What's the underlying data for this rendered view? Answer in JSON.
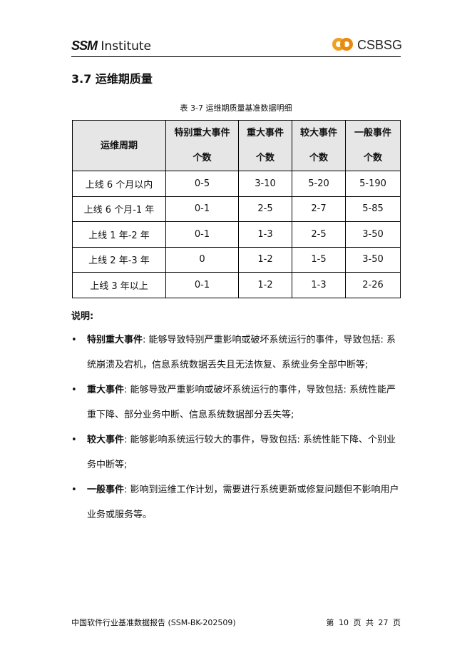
{
  "header": {
    "logo_left": "SSM Institute",
    "logo_left_mark": "SSM",
    "logo_left_text": "Institute",
    "logo_right": "CSBSG"
  },
  "section": {
    "heading": "3.7  运维期质量"
  },
  "table": {
    "caption": "表 3-7  运维期质量基准数据明细",
    "headers": [
      {
        "line1": "运维周期",
        "line2": ""
      },
      {
        "line1": "特别重大事件",
        "line2": "个数"
      },
      {
        "line1": "重大事件",
        "line2": "个数"
      },
      {
        "line1": "较大事件",
        "line2": "个数"
      },
      {
        "line1": "一般事件",
        "line2": "个数"
      }
    ],
    "rows": [
      [
        "上线 6 个月以内",
        "0-5",
        "3-10",
        "5-20",
        "5-190"
      ],
      [
        "上线 6 个月-1 年",
        "0-1",
        "2-5",
        "2-7",
        "5-85"
      ],
      [
        "上线 1 年-2 年",
        "0-1",
        "1-3",
        "2-5",
        "3-50"
      ],
      [
        "上线 2 年-3 年",
        "0",
        "1-2",
        "1-5",
        "3-50"
      ],
      [
        "上线 3 年以上",
        "0-1",
        "1-2",
        "1-3",
        "2-26"
      ]
    ]
  },
  "notes": {
    "title": "说明:",
    "items": [
      {
        "term": "特别重大事件",
        "text": ": 能够导致特别严重影响或破坏系统运行的事件，导致包括: 系统崩溃及宕机，信息系统数据丢失且无法恢复、系统业务全部中断等;"
      },
      {
        "term": "重大事件",
        "text": ": 能够导致严重影响或破坏系统运行的事件，导致包括: 系统性能严重下降、部分业务中断、信息系统数据部分丢失等;"
      },
      {
        "term": "较大事件",
        "text": ": 能够影响系统运行较大的事件，导致包括: 系统性能下降、个别业务中断等;"
      },
      {
        "term": "一般事件",
        "text": ": 影响到运维工作计划，需要进行系统更新或修复问题但不影响用户业务或服务等。"
      }
    ]
  },
  "footer": {
    "left": "中国软件行业基准数据报告 (SSM-BK-202509)",
    "right": "第 10 页 共 27 页"
  }
}
